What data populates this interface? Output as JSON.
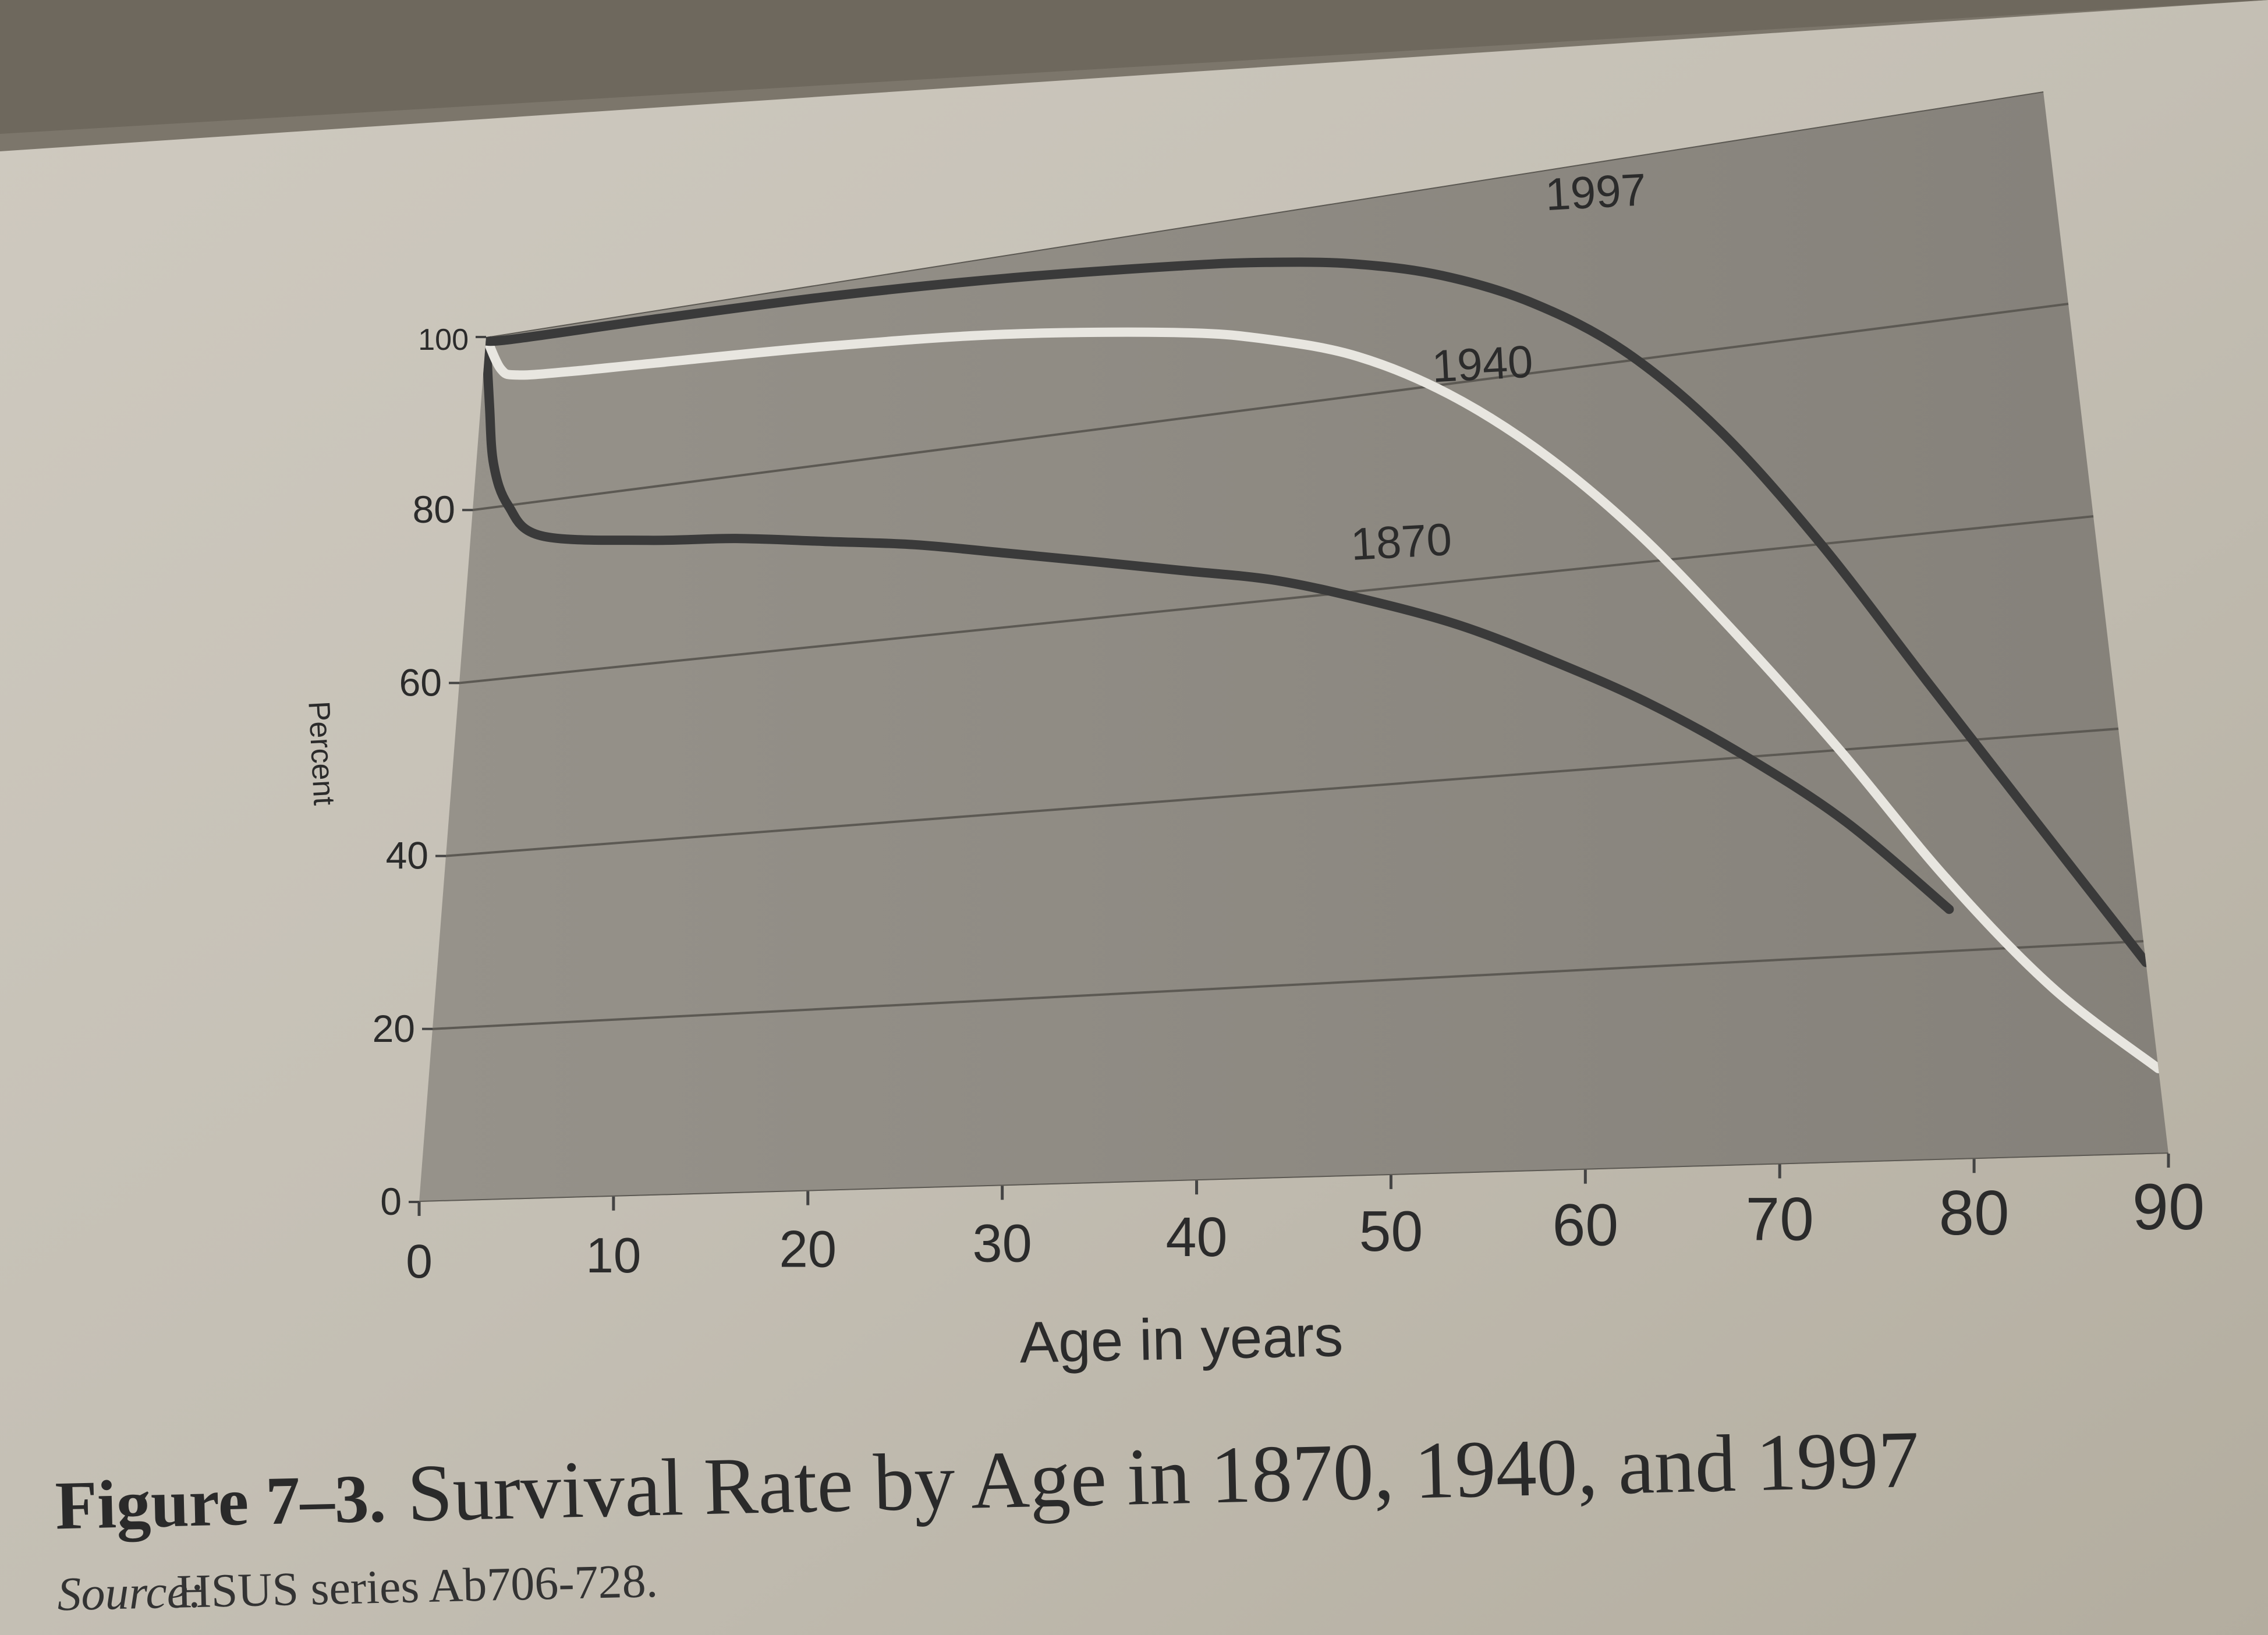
{
  "chart_data": {
    "type": "line",
    "title": "",
    "xlabel": "Age in years",
    "ylabel": "Percent",
    "xlim": [
      0,
      90
    ],
    "ylim": [
      0,
      100
    ],
    "x_ticks": [
      0,
      10,
      20,
      30,
      40,
      50,
      60,
      70,
      80,
      90
    ],
    "y_ticks": [
      0,
      20,
      40,
      60,
      80,
      100
    ],
    "grid": true,
    "legend": "inline labels",
    "series": [
      {
        "name": "1870",
        "color": "#3a3a3a",
        "x": [
          0,
          0.5,
          1,
          2,
          4,
          10,
          15,
          20,
          25,
          30,
          35,
          40,
          45,
          50,
          55,
          60,
          65,
          70,
          75,
          80
        ],
        "y": [
          100,
          92,
          85,
          80,
          76,
          74,
          73,
          71.5,
          70,
          68,
          66,
          64,
          62,
          59,
          55.5,
          51,
          46,
          40,
          33,
          24
        ]
      },
      {
        "name": "1940",
        "color": "#e8e6e0",
        "x": [
          0,
          1,
          2,
          5,
          10,
          20,
          30,
          40,
          45,
          50,
          55,
          60,
          65,
          70,
          75,
          80,
          85,
          90
        ],
        "y": [
          100,
          96,
          95,
          94.5,
          94,
          93,
          91.5,
          89,
          87,
          84,
          79,
          72,
          63,
          52,
          40,
          27,
          16,
          8
        ]
      },
      {
        "name": "1997",
        "color": "#3a3a3a",
        "x": [
          0,
          1,
          10,
          20,
          30,
          40,
          45,
          50,
          55,
          60,
          65,
          70,
          75,
          80,
          85,
          90
        ],
        "y": [
          100,
          99.3,
          99,
          98.5,
          97.5,
          96,
          95,
          93.5,
          91,
          87,
          81,
          72,
          60,
          46,
          32,
          18
        ]
      }
    ]
  },
  "caption": {
    "figure_label": "Figure 7–3.",
    "title": "Survival Rate by Age in 1870, 1940, and 1997",
    "source_label": "Source:",
    "source_text": "HSUS series Ab706-728."
  }
}
